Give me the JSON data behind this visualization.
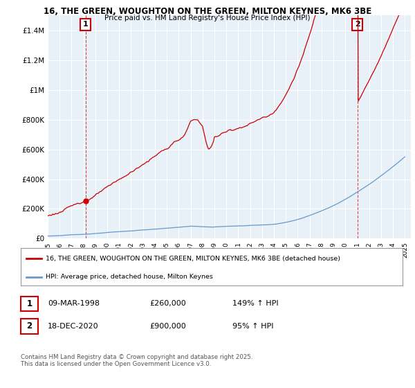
{
  "title1": "16, THE GREEN, WOUGHTON ON THE GREEN, MILTON KEYNES, MK6 3BE",
  "title2": "Price paid vs. HM Land Registry's House Price Index (HPI)",
  "legend_line1": "16, THE GREEN, WOUGHTON ON THE GREEN, MILTON KEYNES, MK6 3BE (detached house)",
  "legend_line2": "HPI: Average price, detached house, Milton Keynes",
  "annotation1_date": "09-MAR-1998",
  "annotation1_price": "£260,000",
  "annotation1_hpi": "149% ↑ HPI",
  "annotation2_date": "18-DEC-2020",
  "annotation2_price": "£900,000",
  "annotation2_hpi": "95% ↑ HPI",
  "footer": "Contains HM Land Registry data © Crown copyright and database right 2025.\nThis data is licensed under the Open Government Licence v3.0.",
  "red_color": "#cc0000",
  "blue_color": "#6699cc",
  "chart_bg": "#e8f0f8",
  "background_color": "#ffffff",
  "grid_color": "#ffffff",
  "ylim": [
    0,
    1500000
  ],
  "yticks": [
    0,
    200000,
    400000,
    600000,
    800000,
    1000000,
    1200000,
    1400000
  ],
  "ytick_labels": [
    "£0",
    "£200K",
    "£400K",
    "£600K",
    "£800K",
    "£1M",
    "£1.2M",
    "£1.4M"
  ],
  "sale1_year": 1998.19,
  "sale1_price": 260000,
  "sale2_year": 2020.96,
  "sale2_price": 900000
}
